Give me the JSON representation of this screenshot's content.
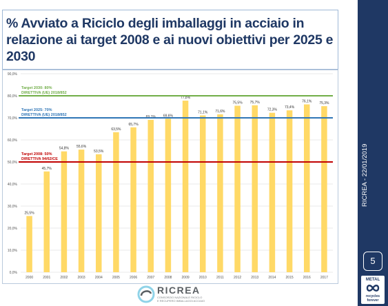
{
  "slide": {
    "title": "% Avviato a Riciclo degli imballaggi in acciaio in relazione ai target 2008 e ai nuovi obiettivi per 2025 e 2030",
    "side_text": "RICREA - 22/01/2019",
    "page_number": "5",
    "badge": {
      "top": "METAL",
      "bottom_line1": "recycles",
      "bottom_line2": "forever"
    },
    "logo": {
      "name": "RICREA",
      "sub_line1": "CONSORZIO NAZIONALE RICICLO",
      "sub_line2": "E RECUPERO IMBALLAGGI ACCIAIO"
    }
  },
  "colors": {
    "bar": "#ffd966",
    "target2030": "#70ad47",
    "target2025": "#2e75b6",
    "target2008": "#c00000",
    "navy": "#1f3864"
  },
  "chart_data": {
    "type": "bar",
    "categories": [
      "2000",
      "2001",
      "2002",
      "2003",
      "2004",
      "2005",
      "2006",
      "2007",
      "2008",
      "2009",
      "2010",
      "2011",
      "2012",
      "2013",
      "2014",
      "2015",
      "2016",
      "2017"
    ],
    "values": [
      25.5,
      45.7,
      54.8,
      55.6,
      53.5,
      63.5,
      65.7,
      69.1,
      69.6,
      77.8,
      71.1,
      71.6,
      75.5,
      75.7,
      72.3,
      73.4,
      76.1,
      75.3
    ],
    "value_labels": [
      "25,5%",
      "45,7%",
      "54,8%",
      "55,6%",
      "53,5%",
      "63,5%",
      "65,7%",
      "69,1%",
      "69,6%",
      "77,8%",
      "71,1%",
      "71,6%",
      "75,5%",
      "75,7%",
      "72,3%",
      "73,4%",
      "76,1%",
      "75,3%"
    ],
    "y_ticks": [
      "0,0%",
      "10,0%",
      "20,0%",
      "30,0%",
      "40,0%",
      "50,0%",
      "60,0%",
      "70,0%",
      "80,0%",
      "90,0%"
    ],
    "ylim": [
      0,
      90
    ],
    "grid": true,
    "reference_lines": [
      {
        "value": 80,
        "line1": "Target 2030: 80%",
        "line2": "DIRETTIVA (UE) 2018/852",
        "color": "#70ad47"
      },
      {
        "value": 70,
        "line1": "Target 2025: 70%",
        "line2": "DIRETTIVA (UE) 2018/852",
        "color": "#2e75b6"
      },
      {
        "value": 50,
        "line1": "Target 2008: 50%",
        "line2": "DIRETTIVA 94/62/CE",
        "color": "#c00000"
      }
    ]
  }
}
